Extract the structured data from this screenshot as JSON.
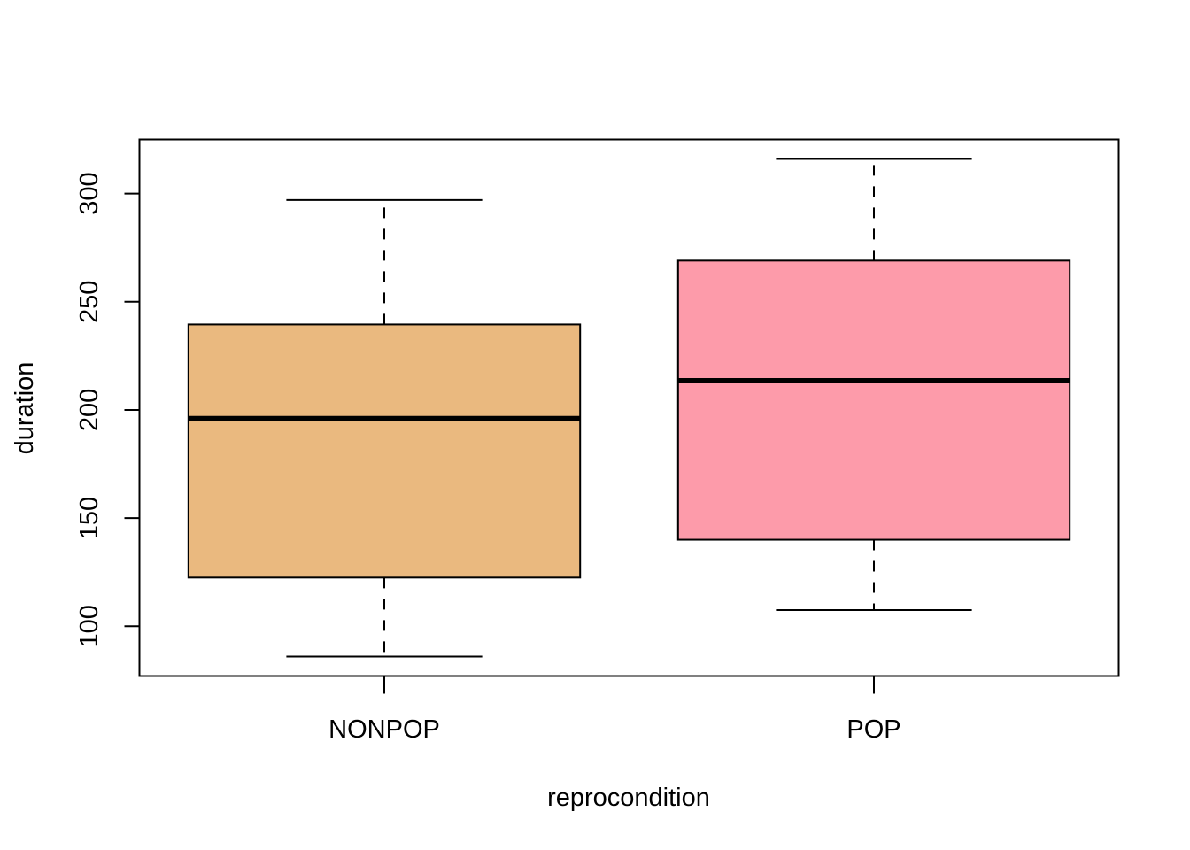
{
  "chart_data": {
    "type": "boxplot",
    "title": "",
    "xlabel": "reprocondition",
    "ylabel": "duration",
    "ylim": [
      77,
      325
    ],
    "y_ticks": [
      100,
      150,
      200,
      250,
      300
    ],
    "y_tick_labels": [
      "100",
      "150",
      "200",
      "250",
      "300"
    ],
    "grid": false,
    "categories": [
      "NONPOP",
      "POP"
    ],
    "colors": [
      "#EAB97F",
      "#FD9BAA"
    ],
    "boxes": [
      {
        "category": "NONPOP",
        "whisker_low": 86,
        "q1": 122.5,
        "median": 196,
        "q3": 239.5,
        "whisker_high": 297
      },
      {
        "category": "POP",
        "whisker_low": 107.5,
        "q1": 140,
        "median": 213.5,
        "q3": 269,
        "whisker_high": 316
      }
    ]
  }
}
